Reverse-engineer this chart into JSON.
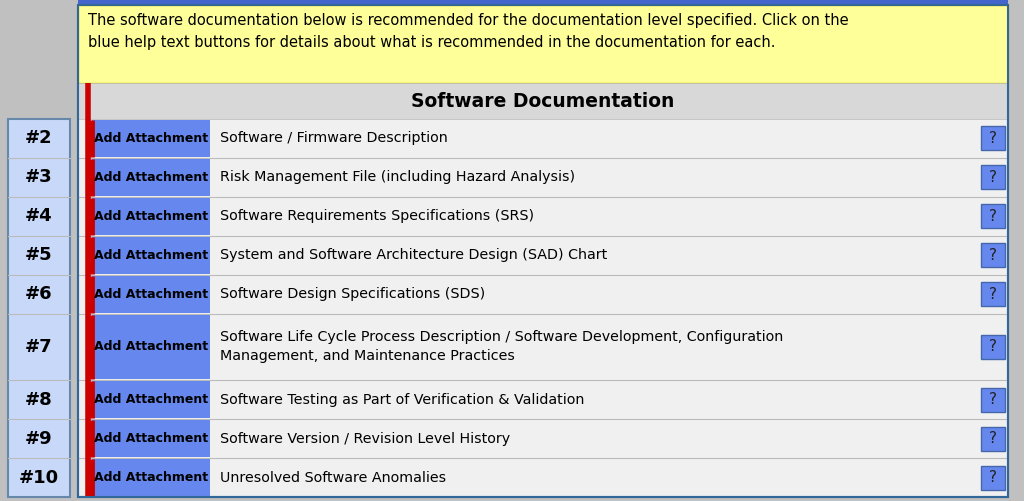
{
  "title": "Software Documentation",
  "header_note": "The software documentation below is recommended for the documentation level specified. Click on the\nblue help text buttons for details about what is recommended in the documentation for each.",
  "rows": [
    {
      "num": "#2",
      "label": "Software / Firmware Description"
    },
    {
      "num": "#3",
      "label": "Risk Management File (including Hazard Analysis)"
    },
    {
      "num": "#4",
      "label": "Software Requirements Specifications (SRS)"
    },
    {
      "num": "#5",
      "label": "System and Software Architecture Design (SAD) Chart"
    },
    {
      "num": "#6",
      "label": "Software Design Specifications (SDS)"
    },
    {
      "num": "#7",
      "label": "Software Life Cycle Process Description / Software Development, Configuration\nManagement, and Maintenance Practices"
    },
    {
      "num": "#8",
      "label": "Software Testing as Part of Verification & Validation"
    },
    {
      "num": "#9",
      "label": "Software Version / Revision Level History"
    },
    {
      "num": "#10",
      "label": "Unresolved Software Anomalies"
    }
  ],
  "btn_text": "Add Attachment",
  "question_mark": "?",
  "outer_bg": "#c0c0c0",
  "main_bg": "#f0f0f0",
  "header_note_bg": "#ffff99",
  "header_note_border": "#cccc00",
  "title_row_bg": "#d8d8d8",
  "btn_bg": "#6688ee",
  "btn_border_left": "#cc0000",
  "btn_text_color": "#000000",
  "num_panel_bg": "#c8d8f8",
  "num_panel_border": "#6688aa",
  "red_line_color": "#cc0000",
  "question_btn_bg": "#6688ee",
  "question_btn_border": "#4466aa",
  "outer_border_color": "#336699",
  "row_border_color": "#bbbbbb",
  "top_accent_color": "#4466cc",
  "title_text_color": "#000000",
  "num_text_color": "#000000",
  "label_text_color": "#000000",
  "note_text_color": "#000000"
}
